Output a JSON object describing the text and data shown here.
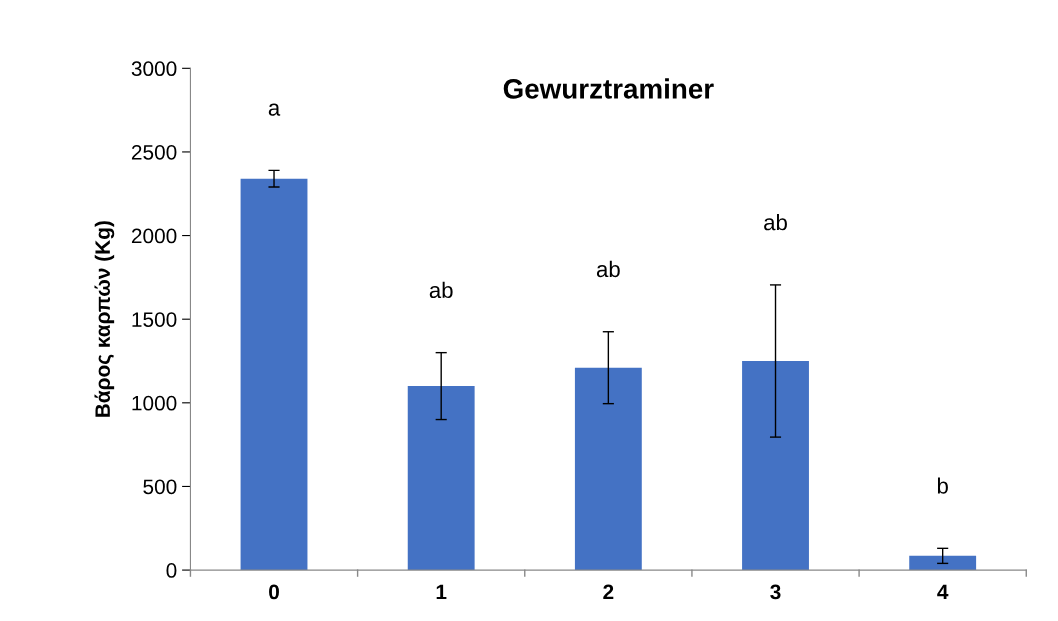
{
  "chart_data": {
    "type": "bar",
    "title": "Gewurztraminer",
    "ylabel": "Βάρος καρπών (Kg)",
    "categories": [
      "0",
      "1",
      "2",
      "3",
      "4"
    ],
    "values": [
      2340,
      1100,
      1210,
      1250,
      85
    ],
    "errors": [
      50,
      200,
      215,
      455,
      45
    ],
    "color": "#4472c4",
    "ylim": [
      0,
      3000
    ],
    "yticks": [
      0,
      500,
      1000,
      1500,
      2000,
      2500,
      3000
    ],
    "grid": false,
    "legend": false,
    "annotations": [
      "a",
      "ab",
      "ab",
      "ab",
      "b"
    ]
  }
}
